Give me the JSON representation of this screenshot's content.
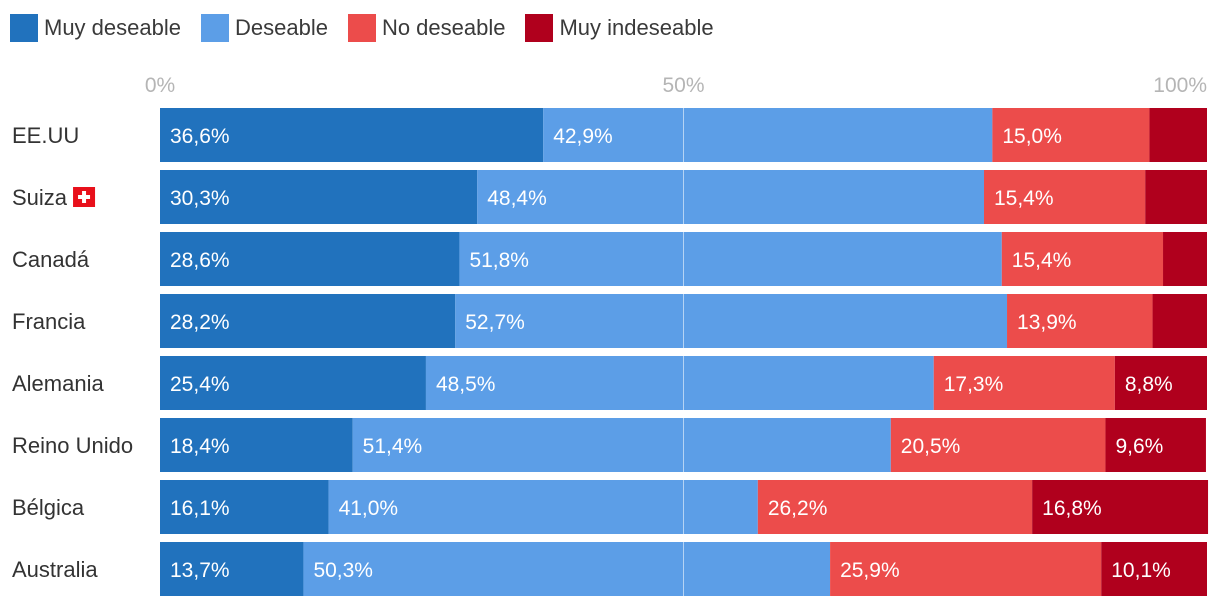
{
  "chart_data": {
    "type": "bar",
    "orientation": "horizontal",
    "stacked": true,
    "categories": [
      "EE.UU",
      "Suiza",
      "Canadá",
      "Francia",
      "Alemania",
      "Reino Unido",
      "Bélgica",
      "Australia"
    ],
    "series": [
      {
        "name": "Muy deseable",
        "color": "#2172bd",
        "values": [
          36.6,
          30.3,
          28.6,
          28.2,
          25.4,
          18.4,
          16.1,
          13.7
        ],
        "labels": [
          "36,6%",
          "30,3%",
          "28,6%",
          "28,2%",
          "25,4%",
          "18,4%",
          "16,1%",
          "13,7%"
        ]
      },
      {
        "name": "Deseable",
        "color": "#5c9ee7",
        "values": [
          42.9,
          48.4,
          51.8,
          52.7,
          48.5,
          51.4,
          41.0,
          50.3
        ],
        "labels": [
          "42,9%",
          "48,4%",
          "51,8%",
          "52,7%",
          "48,5%",
          "51,4%",
          "41,0%",
          "50,3%"
        ]
      },
      {
        "name": "No deseable",
        "color": "#ec4c4b",
        "values": [
          15.0,
          15.4,
          15.4,
          13.9,
          17.3,
          20.5,
          26.2,
          25.9
        ],
        "labels": [
          "15,0%",
          "15,4%",
          "15,4%",
          "13,9%",
          "17,3%",
          "20,5%",
          "26,2%",
          "25,9%"
        ]
      },
      {
        "name": "Muy indeseable",
        "color": "#b0001d",
        "values": [
          5.5,
          5.9,
          4.2,
          5.2,
          8.8,
          9.6,
          16.8,
          10.1
        ],
        "labels": [
          "",
          "",
          "",
          "",
          "8,8%",
          "9,6%",
          "16,8%",
          "10,1%"
        ]
      }
    ],
    "xlim": [
      0,
      100
    ],
    "x_ticks": [
      {
        "value": 0,
        "label": "0%"
      },
      {
        "value": 50,
        "label": "50%"
      },
      {
        "value": 100,
        "label": "100%"
      }
    ],
    "grid": true,
    "legend": "top-left",
    "flag_category": "Suiza",
    "flag_icon": "swiss-flag-icon"
  }
}
